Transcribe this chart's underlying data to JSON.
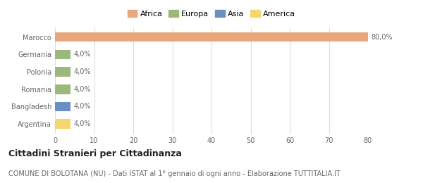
{
  "categories": [
    "Argentina",
    "Bangladesh",
    "Romania",
    "Polonia",
    "Germania",
    "Marocco"
  ],
  "values": [
    4.0,
    4.0,
    4.0,
    4.0,
    4.0,
    80.0
  ],
  "colors": [
    "#f5d76e",
    "#6b8ec4",
    "#9db87b",
    "#9db87b",
    "#9db87b",
    "#e8a87c"
  ],
  "labels": [
    "4,0%",
    "4,0%",
    "4,0%",
    "4,0%",
    "4,0%",
    "80,0%"
  ],
  "legend_items": [
    {
      "label": "Africa",
      "color": "#e8a87c"
    },
    {
      "label": "Europa",
      "color": "#9db87b"
    },
    {
      "label": "Asia",
      "color": "#6b8ec4"
    },
    {
      "label": "America",
      "color": "#f5d76e"
    }
  ],
  "xlim": [
    0,
    80
  ],
  "xticks": [
    0,
    10,
    20,
    30,
    40,
    50,
    60,
    70,
    80
  ],
  "title": "Cittadini Stranieri per Cittadinanza",
  "subtitle": "COMUNE DI BOLOTANA (NU) - Dati ISTAT al 1° gennaio di ogni anno - Elaborazione TUTTITALIA.IT",
  "background_color": "#ffffff",
  "grid_color": "#e0ddd8",
  "title_fontsize": 9,
  "subtitle_fontsize": 7,
  "label_fontsize": 7,
  "tick_fontsize": 7,
  "legend_fontsize": 8
}
